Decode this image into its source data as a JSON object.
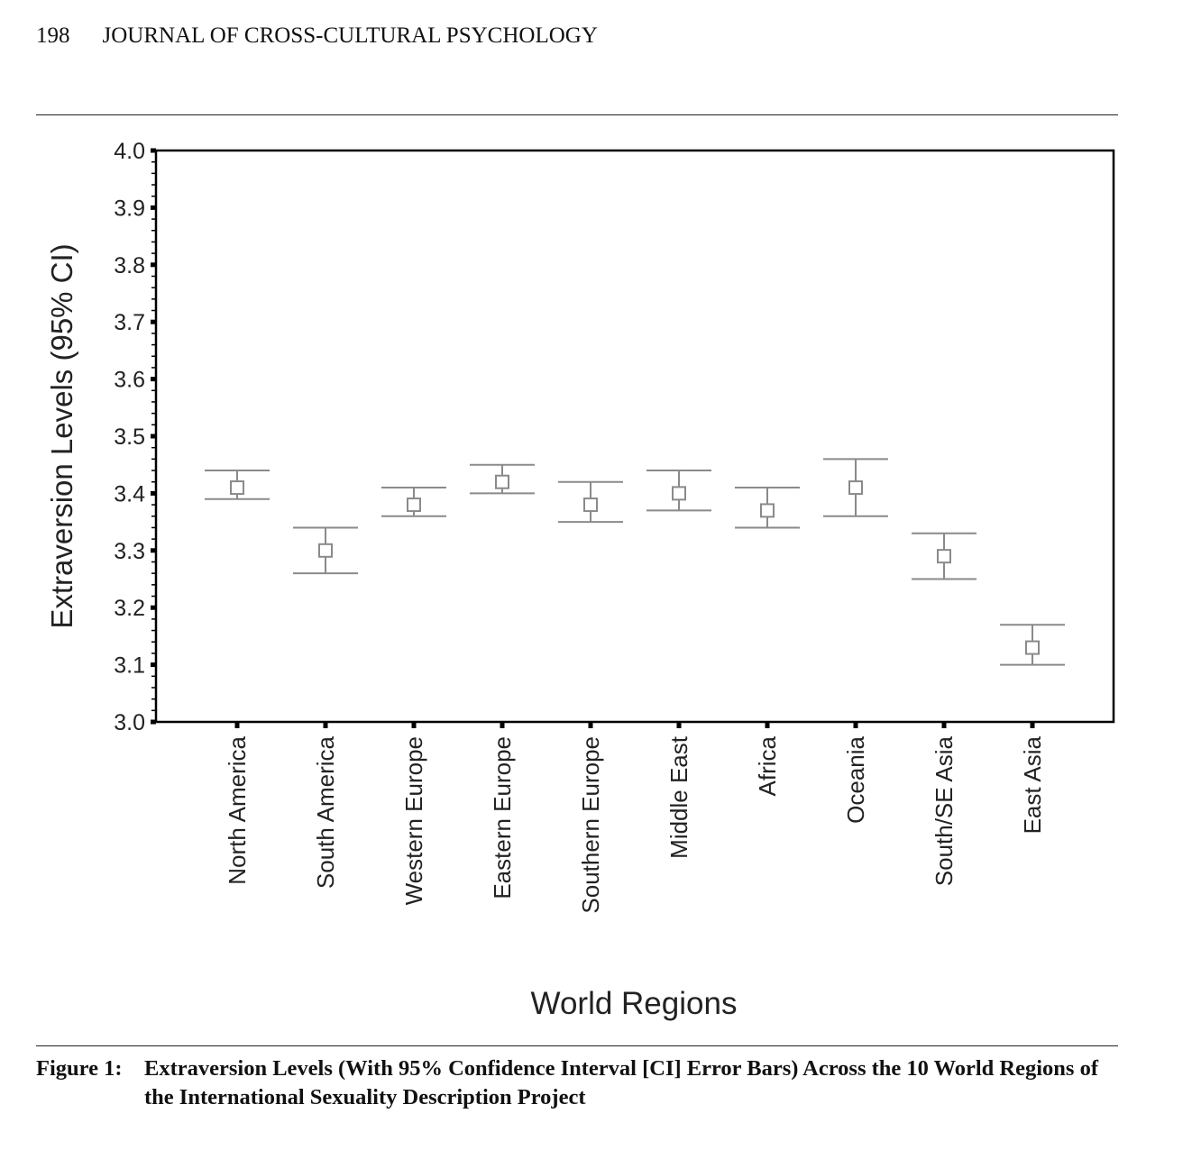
{
  "header": {
    "page_number": "198",
    "journal_title": "JOURNAL OF CROSS-CULTURAL PSYCHOLOGY"
  },
  "caption": {
    "label": "Figure 1:",
    "text": "Extraversion Levels (With 95% Confidence Interval [CI] Error Bars) Across the 10 World Regions of the International Sexuality Description Project"
  },
  "chart_data": {
    "type": "scatter",
    "subtype": "error-bars",
    "title": "",
    "xlabel": "World Regions",
    "ylabel": "Extraversion Levels (95% CI)",
    "ylim": [
      3.0,
      4.0
    ],
    "yticks": [
      "3.0",
      "3.1",
      "3.2",
      "3.3",
      "3.4",
      "3.5",
      "3.6",
      "3.7",
      "3.8",
      "3.9",
      "4.0"
    ],
    "grid": false,
    "categories": [
      "North America",
      "South America",
      "Western Europe",
      "Eastern Europe",
      "Southern Europe",
      "Middle East",
      "Africa",
      "Oceania",
      "South/SE Asia",
      "East Asia"
    ],
    "series": [
      {
        "name": "Extraversion",
        "mean": [
          3.41,
          3.3,
          3.38,
          3.42,
          3.38,
          3.4,
          3.37,
          3.41,
          3.29,
          3.13
        ],
        "ci_lower": [
          3.39,
          3.26,
          3.36,
          3.4,
          3.35,
          3.37,
          3.34,
          3.36,
          3.25,
          3.1
        ],
        "ci_upper": [
          3.44,
          3.34,
          3.41,
          3.45,
          3.42,
          3.44,
          3.41,
          3.46,
          3.33,
          3.17
        ]
      }
    ],
    "marker": "open-square",
    "color": "#8a8a8a",
    "axis_color": "#000000"
  }
}
